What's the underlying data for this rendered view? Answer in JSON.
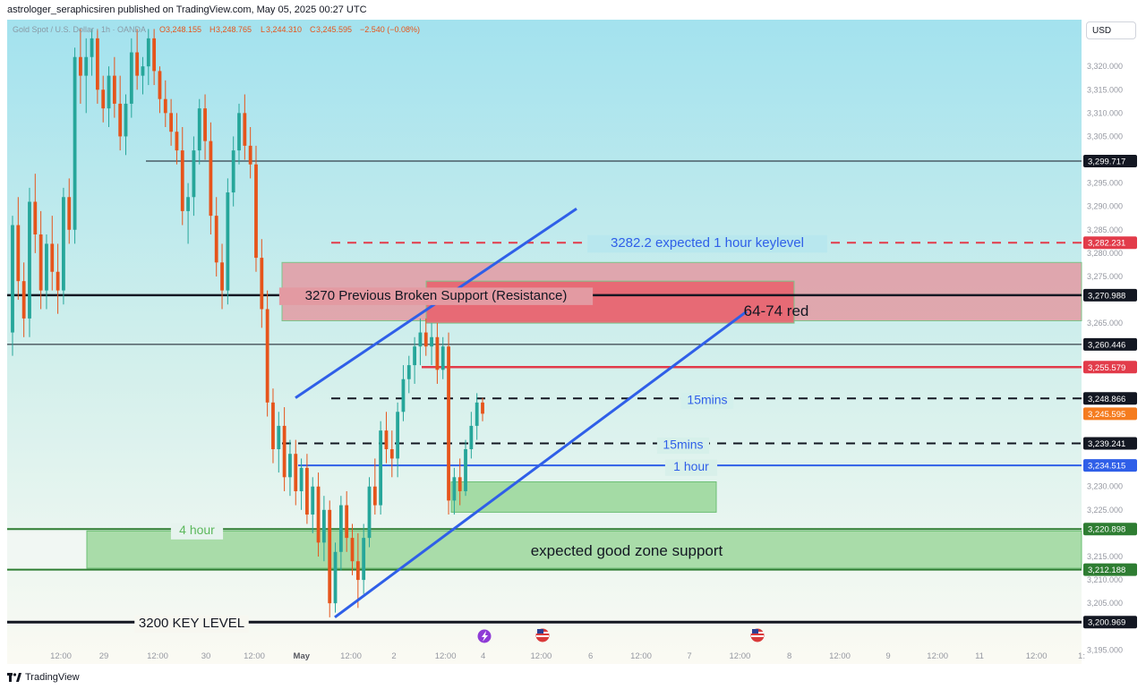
{
  "header": {
    "published": "astrologer_seraphicsiren published on TradingView.com, May 05, 2025 00:27 UTC",
    "symbol_line_prefix": "Gold Spot / U.S. Dollar · 1h · OANDA",
    "ohlc": {
      "o_label": "O",
      "o": "3,248.155",
      "h_label": "H",
      "h": "3,248.765",
      "l_label": "L",
      "l": "3,244.310",
      "c_label": "C",
      "c": "3,245.595",
      "change": "−2.540 (−0.08%)"
    }
  },
  "currency_button": "USD",
  "footer": {
    "brand": "TradingView"
  },
  "colors": {
    "bg_top": "#a6e3ee",
    "bg_bottom": "#fbfbf6",
    "up": "#26a69a",
    "down": "#e6541b",
    "channel": "#2f5fe8",
    "resistance_zone": "#e67b86",
    "support_zone": "#8fd19a",
    "dashed_red": "#e23b4a"
  },
  "chart_data": {
    "type": "candlestick",
    "symbol": "Gold Spot / U.S. Dollar",
    "currency": "USD",
    "ylim": [
      3192,
      3330
    ],
    "price_ticks": [
      "3,320.000",
      "3,315.000",
      "3,310.000",
      "3,305.000",
      "3,295.000",
      "3,290.000",
      "3,285.000",
      "3,280.000",
      "3,275.000",
      "3,265.000",
      "3,230.000",
      "3,225.000",
      "3,215.000",
      "3,210.000",
      "3,205.000",
      "3,195.000"
    ],
    "price_tick_values": [
      3320,
      3315,
      3310,
      3305,
      3295,
      3290,
      3285,
      3280,
      3275,
      3265,
      3230,
      3225,
      3215,
      3210,
      3205,
      3195
    ],
    "time_ticks": [
      {
        "label": "12:00",
        "pos": 0.05
      },
      {
        "label": "29",
        "pos": 0.09
      },
      {
        "label": "12:00",
        "pos": 0.14
      },
      {
        "label": "30",
        "pos": 0.185
      },
      {
        "label": "12:00",
        "pos": 0.23
      },
      {
        "label": "May",
        "pos": 0.274
      },
      {
        "label": "12:00",
        "pos": 0.32
      },
      {
        "label": "2",
        "pos": 0.36
      },
      {
        "label": "12:00",
        "pos": 0.408
      },
      {
        "label": "4",
        "pos": 0.443
      },
      {
        "label": "12:00",
        "pos": 0.497
      },
      {
        "label": "6",
        "pos": 0.543
      },
      {
        "label": "12:00",
        "pos": 0.59
      },
      {
        "label": "7",
        "pos": 0.635
      },
      {
        "label": "12:00",
        "pos": 0.682
      },
      {
        "label": "8",
        "pos": 0.728
      },
      {
        "label": "12:00",
        "pos": 0.775
      },
      {
        "label": "9",
        "pos": 0.82
      },
      {
        "label": "12:00",
        "pos": 0.866
      },
      {
        "label": "11",
        "pos": 0.905
      },
      {
        "label": "12:00",
        "pos": 0.958
      },
      {
        "label": "1:",
        "pos": 1.0
      }
    ],
    "price_badges": [
      {
        "label": "3,299.717",
        "value": 3299.717,
        "bg": "#131722",
        "fg": "#ffffff"
      },
      {
        "label": "3,282.231",
        "value": 3282.231,
        "bg": "#e23b4a",
        "fg": "#ffffff"
      },
      {
        "label": "3,270.988",
        "value": 3270.988,
        "bg": "#131722",
        "fg": "#ffffff"
      },
      {
        "label": "3,260.446",
        "value": 3260.446,
        "bg": "#131722",
        "fg": "#ffffff"
      },
      {
        "label": "3,255.579",
        "value": 3255.579,
        "bg": "#e23b4a",
        "fg": "#ffffff"
      },
      {
        "label": "3,248.866",
        "value": 3248.866,
        "bg": "#131722",
        "fg": "#ffffff"
      },
      {
        "label": "3,245.595",
        "value": 3245.595,
        "bg": "#f57c1f",
        "fg": "#ffffff"
      },
      {
        "label": "3,239.241",
        "value": 3239.241,
        "bg": "#131722",
        "fg": "#ffffff"
      },
      {
        "label": "3,234.515",
        "value": 3234.515,
        "bg": "#2f5fe8",
        "fg": "#ffffff"
      },
      {
        "label": "3,220.898",
        "value": 3220.898,
        "bg": "#2e7d32",
        "fg": "#ffffff"
      },
      {
        "label": "3,212.188",
        "value": 3212.188,
        "bg": "#2e7d32",
        "fg": "#ffffff"
      },
      {
        "label": "3,200.969",
        "value": 3200.969,
        "bg": "#131722",
        "fg": "#ffffff"
      }
    ],
    "annotations": {
      "keylevel_3282": "3282.2 expected 1 hour keylevel",
      "resistance_3270": "3270 Previous Broken Support (Resistance)",
      "red_zone": "64-74 red",
      "m15_upper": "15mins",
      "m15_lower": "15mins",
      "h1_label": "1 hour",
      "h4_label": "4 hour",
      "support_zone": "expected good zone support",
      "key_3200": "3200 KEY LEVEL"
    },
    "levels": {
      "line_3299": 3299.717,
      "dashed_3282": 3282.231,
      "line_3270": 3270.988,
      "line_3260": 3260.446,
      "line_3255": 3255.579,
      "dashed_3248": 3248.866,
      "dashed_3239": 3239.241,
      "line_3234": 3234.515,
      "line_3220": 3220.898,
      "line_3212": 3212.188,
      "line_3200": 3200.969
    },
    "zones": {
      "resistance_outer": [
        3265.5,
        3278
      ],
      "resistance_inner": [
        3265,
        3274
      ],
      "support_wide": [
        3212.5,
        3220.5
      ],
      "support_small": [
        3224.5,
        3231
      ]
    },
    "candles": [
      {
        "o": 3263,
        "h": 3288,
        "l": 3258,
        "c": 3286
      },
      {
        "o": 3286,
        "h": 3292,
        "l": 3270,
        "c": 3274
      },
      {
        "o": 3274,
        "h": 3278,
        "l": 3262,
        "c": 3266
      },
      {
        "o": 3266,
        "h": 3294,
        "l": 3262,
        "c": 3291
      },
      {
        "o": 3291,
        "h": 3297,
        "l": 3280,
        "c": 3284
      },
      {
        "o": 3284,
        "h": 3289,
        "l": 3268,
        "c": 3272
      },
      {
        "o": 3272,
        "h": 3284,
        "l": 3268,
        "c": 3282
      },
      {
        "o": 3282,
        "h": 3288,
        "l": 3272,
        "c": 3276
      },
      {
        "o": 3276,
        "h": 3282,
        "l": 3267,
        "c": 3272
      },
      {
        "o": 3272,
        "h": 3294,
        "l": 3269,
        "c": 3292
      },
      {
        "o": 3292,
        "h": 3296,
        "l": 3282,
        "c": 3285
      },
      {
        "o": 3285,
        "h": 3324,
        "l": 3282,
        "c": 3322
      },
      {
        "o": 3322,
        "h": 3328,
        "l": 3312,
        "c": 3318
      },
      {
        "o": 3318,
        "h": 3326,
        "l": 3310,
        "c": 3322
      },
      {
        "o": 3322,
        "h": 3328,
        "l": 3318,
        "c": 3326
      },
      {
        "o": 3326,
        "h": 3328,
        "l": 3312,
        "c": 3315
      },
      {
        "o": 3315,
        "h": 3318,
        "l": 3308,
        "c": 3311
      },
      {
        "o": 3311,
        "h": 3320,
        "l": 3307,
        "c": 3318
      },
      {
        "o": 3318,
        "h": 3322,
        "l": 3309,
        "c": 3312
      },
      {
        "o": 3312,
        "h": 3318,
        "l": 3302,
        "c": 3305
      },
      {
        "o": 3305,
        "h": 3314,
        "l": 3301,
        "c": 3312
      },
      {
        "o": 3312,
        "h": 3326,
        "l": 3309,
        "c": 3323
      },
      {
        "o": 3323,
        "h": 3328,
        "l": 3315,
        "c": 3318
      },
      {
        "o": 3318,
        "h": 3322,
        "l": 3314,
        "c": 3320
      },
      {
        "o": 3320,
        "h": 3328,
        "l": 3316,
        "c": 3326
      },
      {
        "o": 3326,
        "h": 3328,
        "l": 3316,
        "c": 3319
      },
      {
        "o": 3319,
        "h": 3320,
        "l": 3310,
        "c": 3313
      },
      {
        "o": 3313,
        "h": 3317,
        "l": 3307,
        "c": 3310
      },
      {
        "o": 3310,
        "h": 3313,
        "l": 3303,
        "c": 3306
      },
      {
        "o": 3306,
        "h": 3310,
        "l": 3299,
        "c": 3302
      },
      {
        "o": 3302,
        "h": 3307,
        "l": 3286,
        "c": 3289
      },
      {
        "o": 3289,
        "h": 3295,
        "l": 3282,
        "c": 3292
      },
      {
        "o": 3292,
        "h": 3305,
        "l": 3288,
        "c": 3302
      },
      {
        "o": 3302,
        "h": 3313,
        "l": 3299,
        "c": 3311
      },
      {
        "o": 3311,
        "h": 3314,
        "l": 3300,
        "c": 3304
      },
      {
        "o": 3304,
        "h": 3308,
        "l": 3284,
        "c": 3288
      },
      {
        "o": 3288,
        "h": 3292,
        "l": 3275,
        "c": 3278
      },
      {
        "o": 3278,
        "h": 3282,
        "l": 3268,
        "c": 3272
      },
      {
        "o": 3272,
        "h": 3296,
        "l": 3269,
        "c": 3293
      },
      {
        "o": 3293,
        "h": 3305,
        "l": 3290,
        "c": 3302
      },
      {
        "o": 3302,
        "h": 3312,
        "l": 3299,
        "c": 3310
      },
      {
        "o": 3310,
        "h": 3314,
        "l": 3300,
        "c": 3303
      },
      {
        "o": 3303,
        "h": 3307,
        "l": 3296,
        "c": 3299
      },
      {
        "o": 3299,
        "h": 3303,
        "l": 3276,
        "c": 3279
      },
      {
        "o": 3279,
        "h": 3283,
        "l": 3264,
        "c": 3268
      },
      {
        "o": 3268,
        "h": 3272,
        "l": 3245,
        "c": 3248
      },
      {
        "o": 3248,
        "h": 3251,
        "l": 3235,
        "c": 3238
      },
      {
        "o": 3238,
        "h": 3246,
        "l": 3233,
        "c": 3243
      },
      {
        "o": 3243,
        "h": 3247,
        "l": 3229,
        "c": 3232
      },
      {
        "o": 3232,
        "h": 3240,
        "l": 3228,
        "c": 3237
      },
      {
        "o": 3237,
        "h": 3240,
        "l": 3226,
        "c": 3229
      },
      {
        "o": 3229,
        "h": 3236,
        "l": 3225,
        "c": 3234
      },
      {
        "o": 3234,
        "h": 3237,
        "l": 3222,
        "c": 3224
      },
      {
        "o": 3224,
        "h": 3232,
        "l": 3220,
        "c": 3230
      },
      {
        "o": 3230,
        "h": 3233,
        "l": 3215,
        "c": 3218
      },
      {
        "o": 3218,
        "h": 3228,
        "l": 3214,
        "c": 3225
      },
      {
        "o": 3225,
        "h": 3227,
        "l": 3202,
        "c": 3205
      },
      {
        "o": 3205,
        "h": 3218,
        "l": 3203,
        "c": 3216
      },
      {
        "o": 3216,
        "h": 3228,
        "l": 3212,
        "c": 3226
      },
      {
        "o": 3226,
        "h": 3229,
        "l": 3216,
        "c": 3219
      },
      {
        "o": 3219,
        "h": 3222,
        "l": 3211,
        "c": 3214
      },
      {
        "o": 3214,
        "h": 3220,
        "l": 3204,
        "c": 3210
      },
      {
        "o": 3210,
        "h": 3222,
        "l": 3207,
        "c": 3219
      },
      {
        "o": 3219,
        "h": 3232,
        "l": 3217,
        "c": 3230
      },
      {
        "o": 3230,
        "h": 3236,
        "l": 3224,
        "c": 3226
      },
      {
        "o": 3226,
        "h": 3244,
        "l": 3224,
        "c": 3242
      },
      {
        "o": 3242,
        "h": 3246,
        "l": 3235,
        "c": 3238
      },
      {
        "o": 3238,
        "h": 3242,
        "l": 3232,
        "c": 3236
      },
      {
        "o": 3236,
        "h": 3248,
        "l": 3232,
        "c": 3246
      },
      {
        "o": 3246,
        "h": 3256,
        "l": 3244,
        "c": 3253
      },
      {
        "o": 3253,
        "h": 3258,
        "l": 3250,
        "c": 3256
      },
      {
        "o": 3256,
        "h": 3262,
        "l": 3252,
        "c": 3260
      },
      {
        "o": 3260,
        "h": 3266,
        "l": 3256,
        "c": 3263
      },
      {
        "o": 3263,
        "h": 3266,
        "l": 3258,
        "c": 3260
      },
      {
        "o": 3260,
        "h": 3265,
        "l": 3256,
        "c": 3262
      },
      {
        "o": 3262,
        "h": 3265,
        "l": 3252,
        "c": 3255
      },
      {
        "o": 3255,
        "h": 3262,
        "l": 3253,
        "c": 3260
      },
      {
        "o": 3260,
        "h": 3263,
        "l": 3224,
        "c": 3227
      },
      {
        "o": 3227,
        "h": 3234,
        "l": 3224,
        "c": 3232
      },
      {
        "o": 3232,
        "h": 3236,
        "l": 3226,
        "c": 3229
      },
      {
        "o": 3229,
        "h": 3240,
        "l": 3228,
        "c": 3238
      },
      {
        "o": 3238,
        "h": 3246,
        "l": 3236,
        "c": 3243
      },
      {
        "o": 3243,
        "h": 3250,
        "l": 3240,
        "c": 3248
      },
      {
        "o": 3248,
        "h": 3249,
        "l": 3244,
        "c": 3245.6
      }
    ]
  }
}
